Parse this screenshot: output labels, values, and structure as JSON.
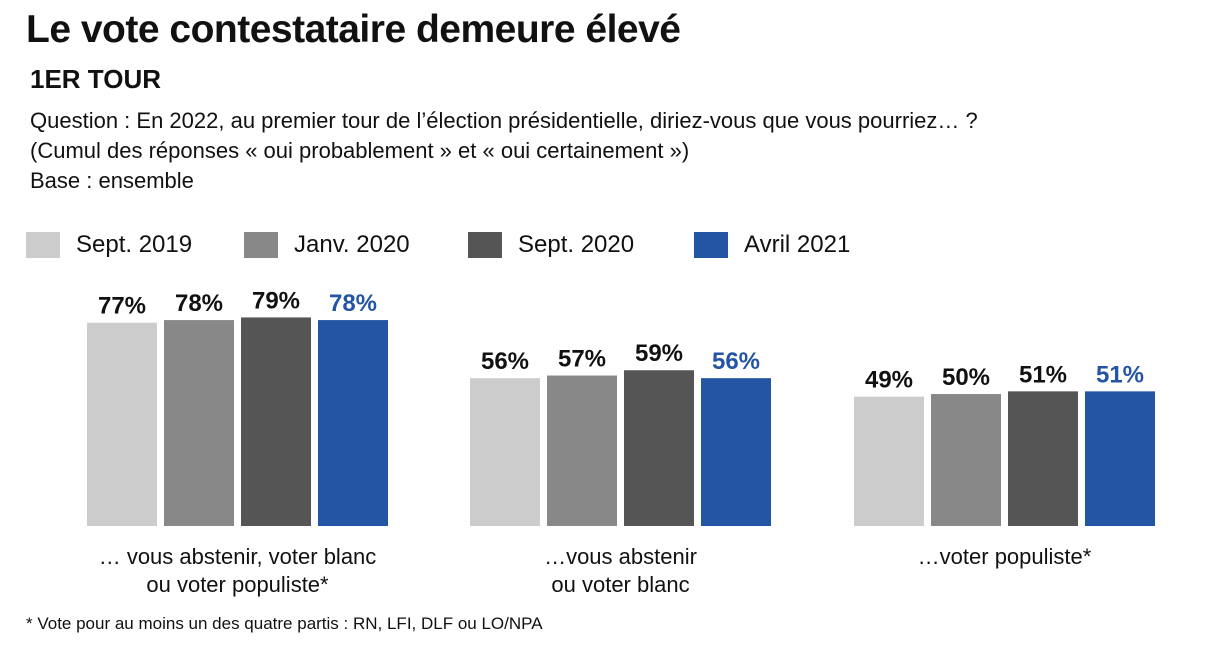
{
  "title": "Le vote contestataire demeure élevé",
  "subtitle": "1ER TOUR",
  "question": [
    "Question : En 2022, au premier tour de l’élection présidentielle, diriez-vous que vous pourriez… ?",
    "(Cumul des réponses « oui probablement » et « oui certainement »)",
    "Base : ensemble"
  ],
  "footnote": "* Vote pour au moins un des quatre partis : RN, LFI, DLF ou LO/NPA",
  "chart_data": {
    "type": "bar",
    "categories": [
      [
        "… vous abstenir, voter blanc",
        "ou voter populiste*"
      ],
      [
        "…vous abstenir",
        "ou voter blanc"
      ],
      [
        "…voter populiste*"
      ]
    ],
    "series": [
      {
        "name": "Sept. 2019",
        "color": "#cccccc",
        "label_color": "#111111",
        "values": [
          77,
          56,
          49
        ]
      },
      {
        "name": "Janv. 2020",
        "color": "#888888",
        "label_color": "#111111",
        "values": [
          78,
          57,
          50
        ]
      },
      {
        "name": "Sept. 2020",
        "color": "#555555",
        "label_color": "#111111",
        "values": [
          79,
          59,
          51
        ]
      },
      {
        "name": "Avril 2021",
        "color": "#2455a4",
        "label_color": "#2455a4",
        "values": [
          78,
          56,
          51
        ]
      }
    ],
    "value_suffix": "%",
    "legend": "top",
    "grid": false
  }
}
